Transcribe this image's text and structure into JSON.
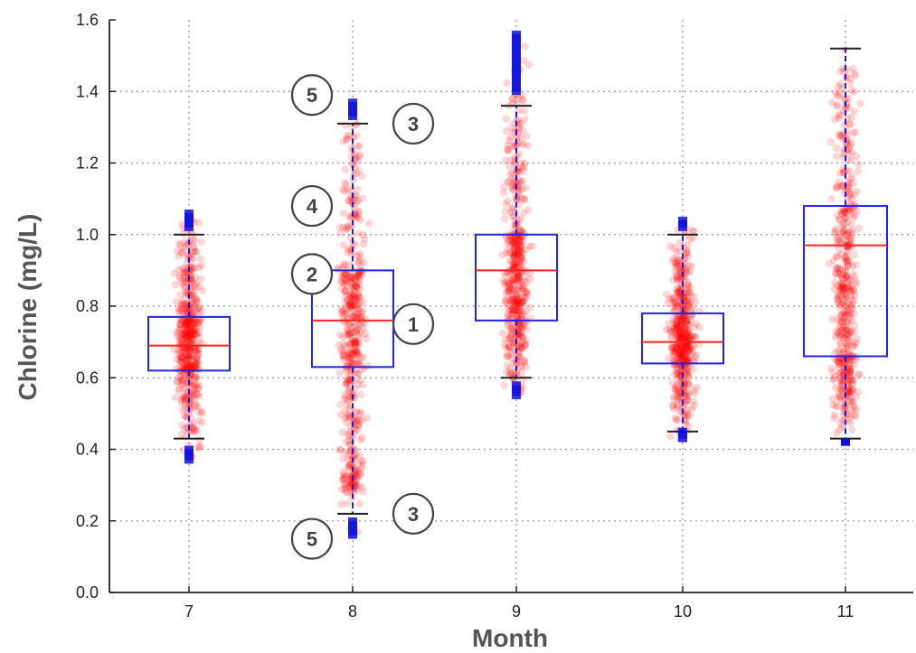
{
  "chart_data": {
    "type": "box",
    "xlabel": "Month",
    "ylabel": "Chlorine (mg/L)",
    "ylim": [
      0.0,
      1.6
    ],
    "yticks": [
      "0.0",
      "0.2",
      "0.4",
      "0.6",
      "0.8",
      "1.0",
      "1.2",
      "1.4",
      "1.6"
    ],
    "grid": true,
    "colors": {
      "box": "#2323ee",
      "median": "#ff2222",
      "points": "#ff0000",
      "whisker": "#1a1aee",
      "cap": "#222222",
      "outlier": "#1010dd",
      "grid": "#999999",
      "callout": "#444444"
    },
    "categories": [
      "7",
      "8",
      "9",
      "10",
      "11"
    ],
    "boxes": [
      {
        "category": "7",
        "whislo": 0.43,
        "q1": 0.62,
        "med": 0.69,
        "q3": 0.77,
        "whishi": 1.0,
        "data_min": 0.37,
        "data_max": 1.06,
        "outliers_low": [
          0.37,
          0.4
        ],
        "outliers_high": [
          1.02,
          1.06
        ]
      },
      {
        "category": "8",
        "whislo": 0.22,
        "q1": 0.63,
        "med": 0.76,
        "q3": 0.9,
        "whishi": 1.31,
        "data_min": 0.16,
        "data_max": 1.37,
        "outliers_low": [
          0.16,
          0.2
        ],
        "outliers_high": [
          1.33,
          1.37
        ]
      },
      {
        "category": "9",
        "whislo": 0.6,
        "q1": 0.76,
        "med": 0.9,
        "q3": 1.0,
        "whishi": 1.36,
        "data_min": 0.55,
        "data_max": 1.56,
        "outliers_low": [
          0.55,
          0.58
        ],
        "outliers_high": [
          1.4,
          1.56
        ]
      },
      {
        "category": "10",
        "whislo": 0.45,
        "q1": 0.64,
        "med": 0.7,
        "q3": 0.78,
        "whishi": 1.0,
        "data_min": 0.43,
        "data_max": 1.04,
        "outliers_low": [
          0.43,
          0.45
        ],
        "outliers_high": [
          1.02,
          1.04
        ]
      },
      {
        "category": "11",
        "whislo": 0.43,
        "q1": 0.66,
        "med": 0.97,
        "q3": 1.08,
        "whishi": 1.52,
        "data_min": 0.42,
        "data_max": 1.52,
        "outliers_low": [
          0.42
        ],
        "outliers_high": []
      }
    ],
    "annotations": [
      {
        "text": "1",
        "category": "8",
        "y": 0.75,
        "side": "right"
      },
      {
        "text": "2",
        "category": "8",
        "y": 0.89,
        "side": "left"
      },
      {
        "text": "3",
        "category": "8",
        "y": 1.31,
        "side": "right"
      },
      {
        "text": "3",
        "category": "8",
        "y": 0.22,
        "side": "right"
      },
      {
        "text": "4",
        "category": "8",
        "y": 1.08,
        "side": "left"
      },
      {
        "text": "5",
        "category": "8",
        "y": 1.39,
        "side": "left"
      },
      {
        "text": "5",
        "category": "8",
        "y": 0.15,
        "side": "left"
      }
    ]
  }
}
